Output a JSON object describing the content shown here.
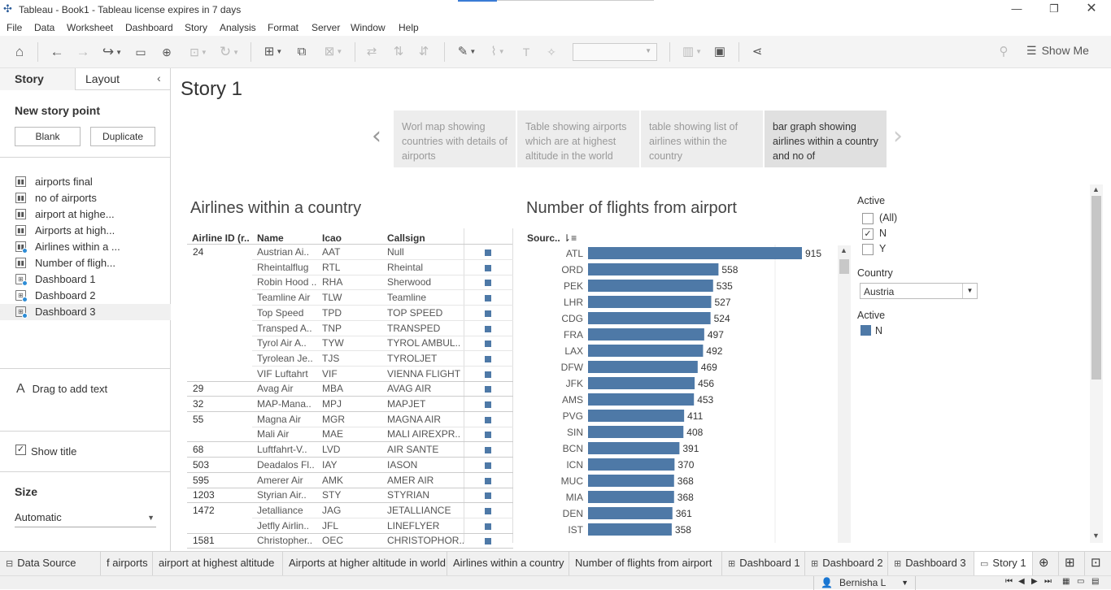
{
  "window": {
    "title": "Tableau - Book1 - Tableau license expires in 7 days"
  },
  "menu": [
    "File",
    "Data",
    "Worksheet",
    "Dashboard",
    "Story",
    "Analysis",
    "Format",
    "Server",
    "Window",
    "Help"
  ],
  "toolbar": {
    "show_me": "Show Me"
  },
  "sidebar": {
    "tab_story": "Story",
    "tab_layout": "Layout",
    "new_story_point": "New story point",
    "blank": "Blank",
    "duplicate": "Duplicate",
    "sheets": [
      {
        "label": "airports final",
        "kind": "sheet"
      },
      {
        "label": "no of airports",
        "kind": "sheet"
      },
      {
        "label": "airport at highe...",
        "kind": "sheet"
      },
      {
        "label": "Airports at high...",
        "kind": "sheet"
      },
      {
        "label": "Airlines within a ...",
        "kind": "sheet"
      },
      {
        "label": "Number of fligh...",
        "kind": "sheet"
      },
      {
        "label": "Dashboard 1",
        "kind": "dashboard"
      },
      {
        "label": "Dashboard 2",
        "kind": "dashboard"
      },
      {
        "label": "Dashboard 3",
        "kind": "dashboard"
      }
    ],
    "drag_text": "Drag to add text",
    "show_title": "Show title",
    "size_label": "Size",
    "size_value": "Automatic"
  },
  "story": {
    "title": "Story 1",
    "points": [
      "Worl map showing countries with details of airports",
      "Table showing airports which are at highest altitude in the world",
      "table showing list of airlines within the country",
      "bar graph showing airlines within a country and no of"
    ]
  },
  "table": {
    "title": "Airlines within a country",
    "headers": [
      "Airline ID (r..",
      "Name",
      "Icao",
      "Callsign"
    ],
    "rows": [
      {
        "id": "24",
        "name": "Austrian Ai..",
        "icao": "AAT",
        "callsign": "Null"
      },
      {
        "id": "",
        "name": "Rheintalflug",
        "icao": "RTL",
        "callsign": "Rheintal"
      },
      {
        "id": "",
        "name": "Robin Hood ..",
        "icao": "RHA",
        "callsign": "Sherwood"
      },
      {
        "id": "",
        "name": "Teamline Air",
        "icao": "TLW",
        "callsign": "Teamline"
      },
      {
        "id": "",
        "name": "Top Speed",
        "icao": "TPD",
        "callsign": "TOP SPEED"
      },
      {
        "id": "",
        "name": "Transped A..",
        "icao": "TNP",
        "callsign": "TRANSPED"
      },
      {
        "id": "",
        "name": "Tyrol Air A..",
        "icao": "TYW",
        "callsign": "TYROL AMBUL.."
      },
      {
        "id": "",
        "name": "Tyrolean Je..",
        "icao": "TJS",
        "callsign": "TYROLJET"
      },
      {
        "id": "",
        "name": "VIF Luftahrt",
        "icao": "VIF",
        "callsign": "VIENNA FLIGHT"
      },
      {
        "id": "29",
        "name": "Avag Air",
        "icao": "MBA",
        "callsign": "AVAG AIR"
      },
      {
        "id": "32",
        "name": "MAP-Mana..",
        "icao": "MPJ",
        "callsign": "MAPJET"
      },
      {
        "id": "55",
        "name": "Magna Air",
        "icao": "MGR",
        "callsign": "MAGNA AIR"
      },
      {
        "id": "",
        "name": "Mali Air",
        "icao": "MAE",
        "callsign": "MALI AIREXPR.."
      },
      {
        "id": "68",
        "name": "Luftfahrt-V..",
        "icao": "LVD",
        "callsign": "AIR SANTE"
      },
      {
        "id": "503",
        "name": "Deadalos Fl..",
        "icao": "IAY",
        "callsign": "IASON"
      },
      {
        "id": "595",
        "name": "Amerer Air",
        "icao": "AMK",
        "callsign": "AMER AIR"
      },
      {
        "id": "1203",
        "name": "Styrian Air..",
        "icao": "STY",
        "callsign": "STYRIAN"
      },
      {
        "id": "1472",
        "name": "Jetalliance",
        "icao": "JAG",
        "callsign": "JETALLIANCE"
      },
      {
        "id": "",
        "name": "Jetfly Airlin..",
        "icao": "JFL",
        "callsign": "LINEFLYER"
      },
      {
        "id": "1581",
        "name": "Christopher..",
        "icao": "OEC",
        "callsign": "CHRISTOPHOR.."
      }
    ]
  },
  "chart_data": {
    "type": "bar",
    "title": "Number of flights from airport",
    "ylabel": "Sourc..",
    "categories": [
      "ATL",
      "ORD",
      "PEK",
      "LHR",
      "CDG",
      "FRA",
      "LAX",
      "DFW",
      "JFK",
      "AMS",
      "PVG",
      "SIN",
      "BCN",
      "ICN",
      "MUC",
      "MIA",
      "DEN",
      "IST"
    ],
    "values": [
      915,
      558,
      535,
      527,
      524,
      497,
      492,
      469,
      456,
      453,
      411,
      408,
      391,
      370,
      368,
      368,
      361,
      358
    ],
    "color": "#4e79a7",
    "orientation": "horizontal",
    "xlim": [
      0,
      915
    ]
  },
  "filters": {
    "active_label": "Active",
    "options": [
      {
        "label": "(All)",
        "checked": false
      },
      {
        "label": "N",
        "checked": true
      },
      {
        "label": "Y",
        "checked": false
      }
    ],
    "country_label": "Country",
    "country_value": "Austria",
    "legend_label": "Active",
    "legend_item": "N",
    "legend_color": "#4e79a7"
  },
  "bottom_tabs": [
    "Data Source",
    "f airports",
    "airport at highest altitude",
    "Airports at higher altitude in world",
    "Airlines within a country",
    "Number of flights from airport",
    "Dashboard 1",
    "Dashboard 2",
    "Dashboard 3",
    "Story 1"
  ],
  "status": {
    "user": "Bernisha L"
  }
}
